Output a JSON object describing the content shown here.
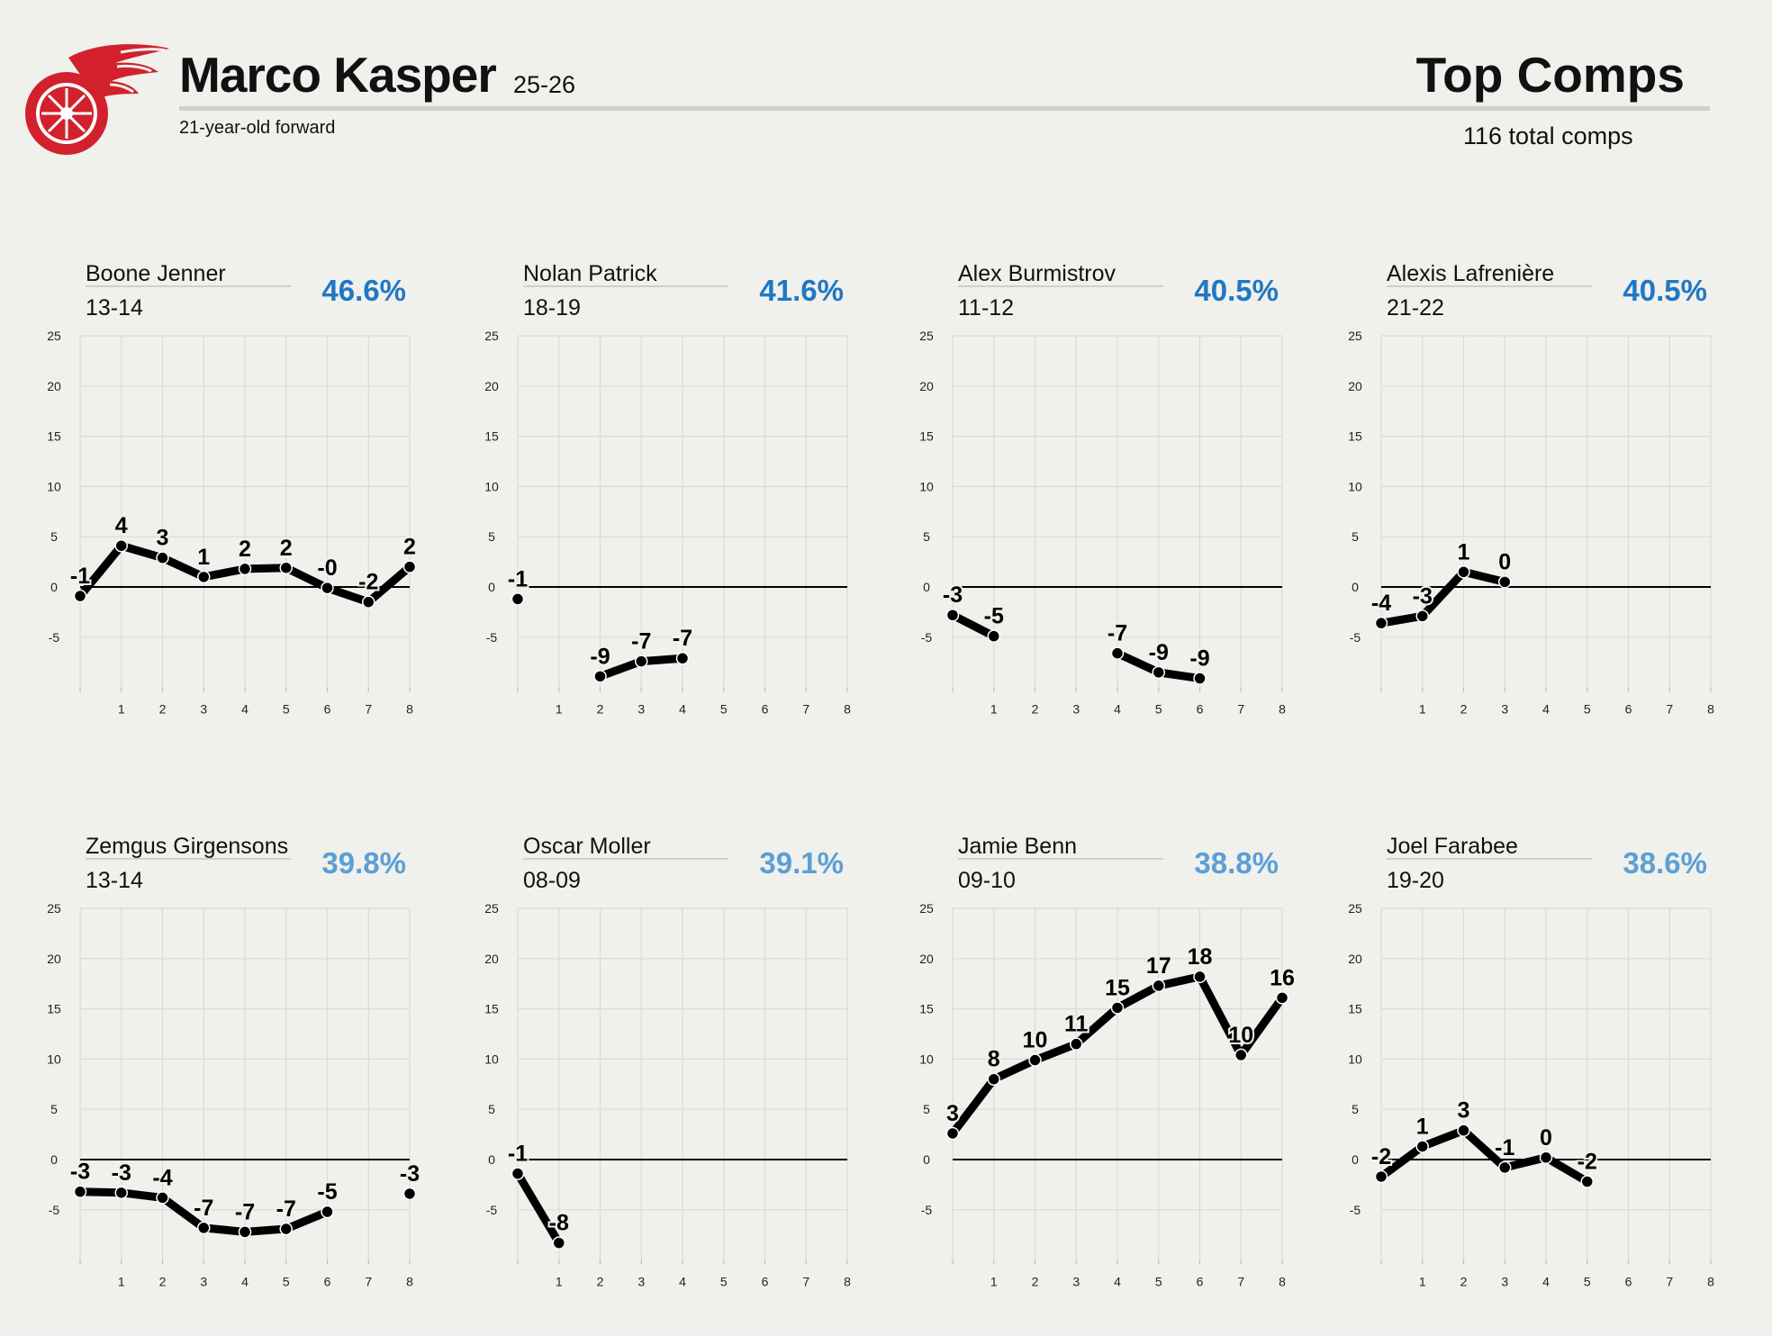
{
  "header": {
    "player_name": "Marco Kasper",
    "season": "25-26",
    "subtitle": "21-year-old forward",
    "section_title": "Top Comps",
    "total_comps": "116 total comps",
    "logo_icon": "red-wings-winged-wheel-icon"
  },
  "colors": {
    "background": "#f0f0ec",
    "line": "#000000",
    "pct_dark": "#1f78c4",
    "pct_light": "#5b9fd6",
    "logo_red": "#d2212c"
  },
  "chart_data": [
    {
      "type": "line",
      "title": "Boone Jenner",
      "subtitle": "13-14",
      "similarity": "46.6%",
      "pct_color": "#1f78c4",
      "x": [
        0,
        1,
        2,
        3,
        4,
        5,
        6,
        7,
        8
      ],
      "values": [
        -0.9,
        4.1,
        2.9,
        1.0,
        1.8,
        1.9,
        -0.1,
        -1.5,
        2.0
      ],
      "labels": [
        "-1",
        "4",
        "3",
        "1",
        "2",
        "2",
        "-0",
        "-2",
        "2"
      ],
      "ylim": [
        -10,
        25
      ],
      "yticks": [
        -5,
        0,
        5,
        10,
        15,
        20,
        25
      ],
      "xticks": [
        1,
        2,
        3,
        4,
        5,
        6,
        7,
        8
      ]
    },
    {
      "type": "line",
      "title": "Nolan Patrick",
      "subtitle": "18-19",
      "similarity": "41.6%",
      "pct_color": "#1f78c4",
      "x": [
        0,
        2,
        3,
        4
      ],
      "values": [
        -1.2,
        -8.9,
        -7.4,
        -7.1
      ],
      "labels": [
        "-1",
        "-9",
        "-7",
        "-7"
      ],
      "ylim": [
        -10,
        25
      ],
      "yticks": [
        -5,
        0,
        5,
        10,
        15,
        20,
        25
      ],
      "xticks": [
        1,
        2,
        3,
        4,
        5,
        6,
        7,
        8
      ]
    },
    {
      "type": "line",
      "title": "Alex Burmistrov",
      "subtitle": "11-12",
      "similarity": "40.5%",
      "pct_color": "#1f78c4",
      "x": [
        0,
        1,
        4,
        5,
        6
      ],
      "values": [
        -2.8,
        -4.9,
        -6.6,
        -8.5,
        -9.1
      ],
      "labels": [
        "-3",
        "-5",
        "-7",
        "-9",
        "-9"
      ],
      "ylim": [
        -10,
        25
      ],
      "yticks": [
        -5,
        0,
        5,
        10,
        15,
        20,
        25
      ],
      "xticks": [
        1,
        2,
        3,
        4,
        5,
        6,
        7,
        8
      ]
    },
    {
      "type": "line",
      "title": "Alexis Lafrenière",
      "subtitle": "21-22",
      "similarity": "40.5%",
      "pct_color": "#1f78c4",
      "x": [
        0,
        1,
        2,
        3
      ],
      "values": [
        -3.6,
        -2.9,
        1.5,
        0.5
      ],
      "labels": [
        "-4",
        "-3",
        "1",
        "0"
      ],
      "ylim": [
        -10,
        25
      ],
      "yticks": [
        -5,
        0,
        5,
        10,
        15,
        20,
        25
      ],
      "xticks": [
        1,
        2,
        3,
        4,
        5,
        6,
        7,
        8
      ]
    },
    {
      "type": "line",
      "title": "Zemgus Girgensons",
      "subtitle": "13-14",
      "similarity": "39.8%",
      "pct_color": "#5b9fd6",
      "x": [
        0,
        1,
        2,
        3,
        4,
        5,
        6,
        8
      ],
      "values": [
        -3.2,
        -3.3,
        -3.8,
        -6.8,
        -7.2,
        -6.9,
        -5.2,
        -3.4
      ],
      "labels": [
        "-3",
        "-3",
        "-4",
        "-7",
        "-7",
        "-7",
        "-5",
        "-3"
      ],
      "ylim": [
        -10,
        25
      ],
      "yticks": [
        -5,
        0,
        5,
        10,
        15,
        20,
        25
      ],
      "xticks": [
        1,
        2,
        3,
        4,
        5,
        6,
        7,
        8
      ]
    },
    {
      "type": "line",
      "title": "Oscar Moller",
      "subtitle": "08-09",
      "similarity": "39.1%",
      "pct_color": "#5b9fd6",
      "x": [
        0,
        1
      ],
      "values": [
        -1.4,
        -8.3
      ],
      "labels": [
        "-1",
        "-8"
      ],
      "ylim": [
        -10,
        25
      ],
      "yticks": [
        -5,
        0,
        5,
        10,
        15,
        20,
        25
      ],
      "xticks": [
        1,
        2,
        3,
        4,
        5,
        6,
        7,
        8
      ]
    },
    {
      "type": "line",
      "title": "Jamie Benn",
      "subtitle": "09-10",
      "similarity": "38.8%",
      "pct_color": "#5b9fd6",
      "x": [
        0,
        1,
        2,
        3,
        4,
        5,
        6,
        7,
        8
      ],
      "values": [
        2.6,
        8.0,
        9.9,
        11.5,
        15.1,
        17.3,
        18.2,
        10.4,
        16.1
      ],
      "labels": [
        "3",
        "8",
        "10",
        "11",
        "15",
        "17",
        "18",
        "10",
        "16"
      ],
      "ylim": [
        -10,
        25
      ],
      "yticks": [
        -5,
        0,
        5,
        10,
        15,
        20,
        25
      ],
      "xticks": [
        1,
        2,
        3,
        4,
        5,
        6,
        7,
        8
      ]
    },
    {
      "type": "line",
      "title": "Joel Farabee",
      "subtitle": "19-20",
      "similarity": "38.6%",
      "pct_color": "#5b9fd6",
      "x": [
        0,
        1,
        2,
        3,
        4,
        5
      ],
      "values": [
        -1.7,
        1.3,
        2.9,
        -0.8,
        0.2,
        -2.2
      ],
      "labels": [
        "-2",
        "1",
        "3",
        "-1",
        "0",
        "-2"
      ],
      "ylim": [
        -10,
        25
      ],
      "yticks": [
        -5,
        0,
        5,
        10,
        15,
        20,
        25
      ],
      "xticks": [
        1,
        2,
        3,
        4,
        5,
        6,
        7,
        8
      ]
    }
  ]
}
